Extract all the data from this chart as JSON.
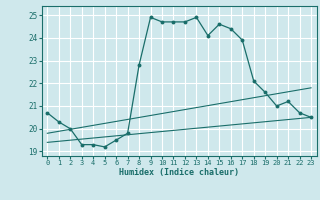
{
  "title": "",
  "xlabel": "Humidex (Indice chaleur)",
  "ylabel": "",
  "xlim": [
    -0.5,
    23.5
  ],
  "ylim": [
    18.8,
    25.4
  ],
  "yticks": [
    19,
    20,
    21,
    22,
    23,
    24,
    25
  ],
  "xticks": [
    0,
    1,
    2,
    3,
    4,
    5,
    6,
    7,
    8,
    9,
    10,
    11,
    12,
    13,
    14,
    15,
    16,
    17,
    18,
    19,
    20,
    21,
    22,
    23
  ],
  "bg_color": "#cfe8ec",
  "line_color": "#1a6e6a",
  "grid_color": "#ffffff",
  "line1_x": [
    0,
    1,
    2,
    3,
    4,
    5,
    6,
    7,
    8,
    9,
    10,
    11,
    12,
    13,
    14,
    15,
    16,
    17,
    18,
    19,
    20,
    21,
    22,
    23
  ],
  "line1_y": [
    20.7,
    20.3,
    20.0,
    19.3,
    19.3,
    19.2,
    19.5,
    19.8,
    22.8,
    24.9,
    24.7,
    24.7,
    24.7,
    24.9,
    24.1,
    24.6,
    24.4,
    23.9,
    22.1,
    21.6,
    21.0,
    21.2,
    20.7,
    20.5
  ],
  "line2_x": [
    0,
    23
  ],
  "line2_y": [
    19.8,
    21.8
  ],
  "line3_x": [
    0,
    23
  ],
  "line3_y": [
    19.4,
    20.5
  ]
}
